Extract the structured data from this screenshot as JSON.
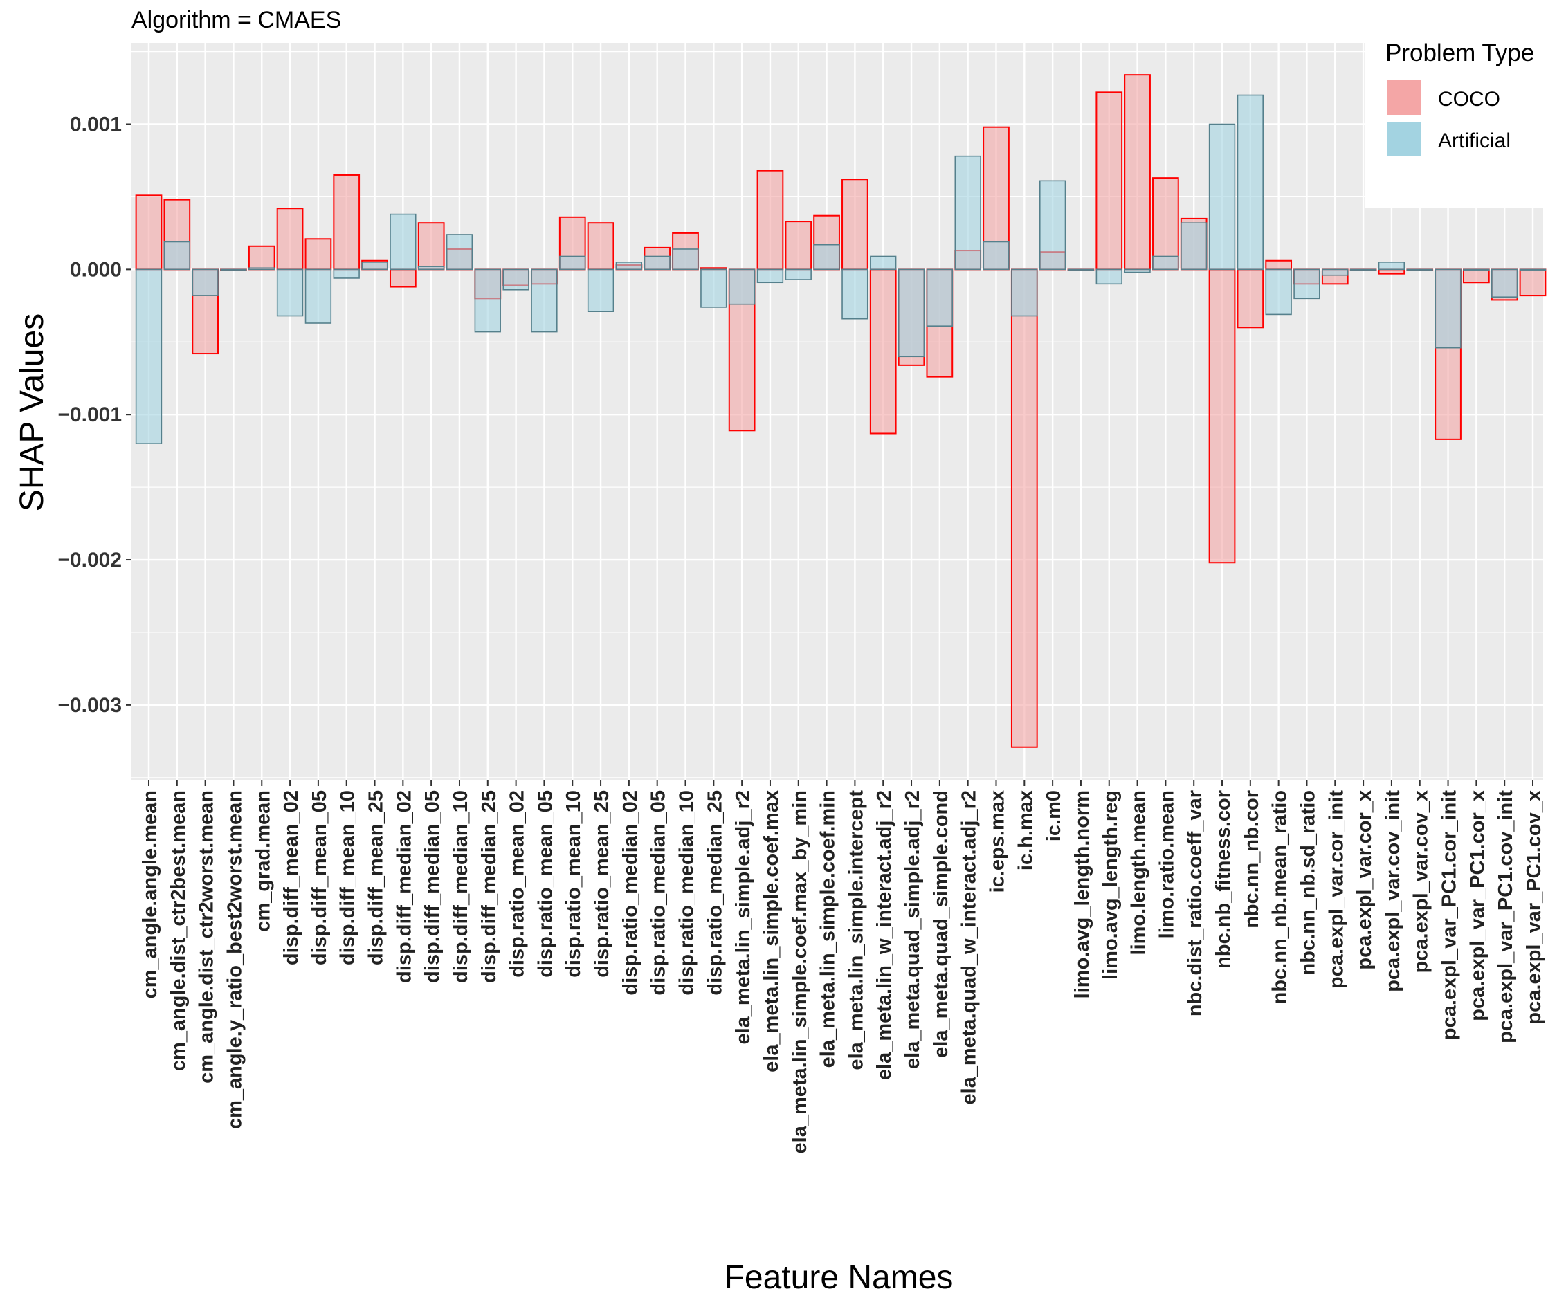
{
  "chart_data": {
    "type": "bar",
    "title": "Algorithm = CMAES",
    "xlabel": "Feature Names",
    "ylabel": "SHAP Values",
    "ylim": [
      -0.00352,
      0.00156
    ],
    "yticks": [
      0.001,
      0.0,
      -0.001,
      -0.002,
      -0.003
    ],
    "ytick_labels": [
      "0.001",
      "0.000",
      "−0.001",
      "−0.002",
      "−0.003"
    ],
    "grid": true,
    "legend": {
      "title": "Problem Type",
      "position": "top-right",
      "entries": [
        "COCO",
        "Artificial"
      ]
    },
    "categories": [
      "cm_angle.angle.mean",
      "cm_angle.dist_ctr2best.mean",
      "cm_angle.dist_ctr2worst.mean",
      "cm_angle.y_ratio_best2worst.mean",
      "cm_grad.mean",
      "disp.diff_mean_02",
      "disp.diff_mean_05",
      "disp.diff_mean_10",
      "disp.diff_mean_25",
      "disp.diff_median_02",
      "disp.diff_median_05",
      "disp.diff_median_10",
      "disp.diff_median_25",
      "disp.ratio_mean_02",
      "disp.ratio_mean_05",
      "disp.ratio_mean_10",
      "disp.ratio_mean_25",
      "disp.ratio_median_02",
      "disp.ratio_median_05",
      "disp.ratio_median_10",
      "disp.ratio_median_25",
      "ela_meta.lin_simple.adj_r2",
      "ela_meta.lin_simple.coef.max",
      "ela_meta.lin_simple.coef.max_by_min",
      "ela_meta.lin_simple.coef.min",
      "ela_meta.lin_simple.intercept",
      "ela_meta.lin_w_interact.adj_r2",
      "ela_meta.quad_simple.adj_r2",
      "ela_meta.quad_simple.cond",
      "ela_meta.quad_w_interact.adj_r2",
      "ic.eps.max",
      "ic.h.max",
      "ic.m0",
      "limo.avg_length.norm",
      "limo.avg_length.reg",
      "limo.length.mean",
      "limo.ratio.mean",
      "nbc.dist_ratio.coeff_var",
      "nbc.nb_fitness.cor",
      "nbc.nn_nb.cor",
      "nbc.nn_nb.mean_ratio",
      "nbc.nn_nb.sd_ratio",
      "pca.expl_var.cor_init",
      "pca.expl_var.cor_x",
      "pca.expl_var.cov_init",
      "pca.expl_var.cov_x",
      "pca.expl_var_PC1.cor_init",
      "pca.expl_var_PC1.cor_x",
      "pca.expl_var_PC1.cov_init",
      "pca.expl_var_PC1.cov_x"
    ],
    "series": [
      {
        "name": "COCO",
        "values": [
          0.00051,
          0.00048,
          -0.00058,
          0.0,
          0.00016,
          0.00042,
          0.00021,
          0.00065,
          6e-05,
          -0.00012,
          0.00032,
          0.00014,
          -0.0002,
          -0.00011,
          -0.0001,
          0.00036,
          0.00032,
          3e-05,
          0.00015,
          0.00025,
          1e-05,
          -0.00111,
          0.00068,
          0.00033,
          0.00037,
          0.00062,
          -0.00113,
          -0.00066,
          -0.00074,
          0.00013,
          0.00098,
          -0.00329,
          0.00012,
          0.0,
          0.00122,
          0.00134,
          0.00063,
          0.00035,
          -0.00202,
          -0.0004,
          6e-05,
          -0.0001,
          -0.0001,
          0.0,
          -3e-05,
          0.0,
          -0.00117,
          -9e-05,
          -0.00021,
          -0.00018
        ]
      },
      {
        "name": "Artificial",
        "values": [
          -0.0012,
          0.00019,
          -0.00018,
          0.0,
          1e-05,
          -0.00032,
          -0.00037,
          -6e-05,
          5e-05,
          0.00038,
          2e-05,
          0.00024,
          -0.00043,
          -0.00014,
          -0.00043,
          9e-05,
          -0.00029,
          5e-05,
          9e-05,
          0.00014,
          -0.00026,
          -0.00024,
          -9e-05,
          -7e-05,
          0.00017,
          -0.00034,
          9e-05,
          -0.0006,
          -0.00039,
          0.00078,
          0.00019,
          -0.00032,
          0.00061,
          0.0,
          -0.0001,
          -2e-05,
          9e-05,
          0.00032,
          0.001,
          0.0012,
          -0.00031,
          -0.0002,
          -4e-05,
          0.0,
          5e-05,
          0.0,
          -0.00054,
          0.0,
          -0.00019,
          0.0
        ]
      }
    ],
    "colors": {
      "coco_fill": "#f4a6a6",
      "coco_stroke": "#ff0000",
      "artificial_fill": "#a3d3e1",
      "artificial_stroke": "#55808c",
      "panel_bg": "#ebebeb",
      "grid": "#ffffff"
    }
  }
}
